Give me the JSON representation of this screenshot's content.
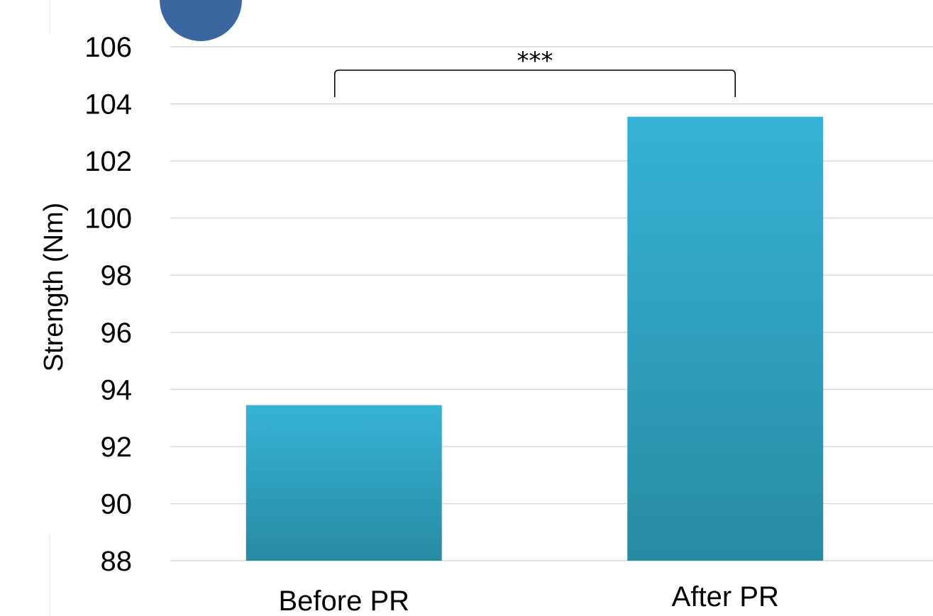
{
  "chart_data": {
    "type": "bar",
    "categories": [
      "Before PR",
      "After PR"
    ],
    "values": [
      93.45,
      103.55
    ],
    "ylabel": "Strength (Nm)",
    "ylim": [
      88,
      106
    ],
    "yticks": [
      88,
      90,
      92,
      94,
      96,
      98,
      100,
      102,
      104,
      106
    ],
    "grid": true,
    "legend": "none",
    "bar_color_top": "#36b3d6",
    "bar_color_bottom": "#278ba2",
    "annotation": {
      "text": "***",
      "between": [
        "Before PR",
        "After PR"
      ]
    },
    "badge_color": "#3a67a0"
  }
}
